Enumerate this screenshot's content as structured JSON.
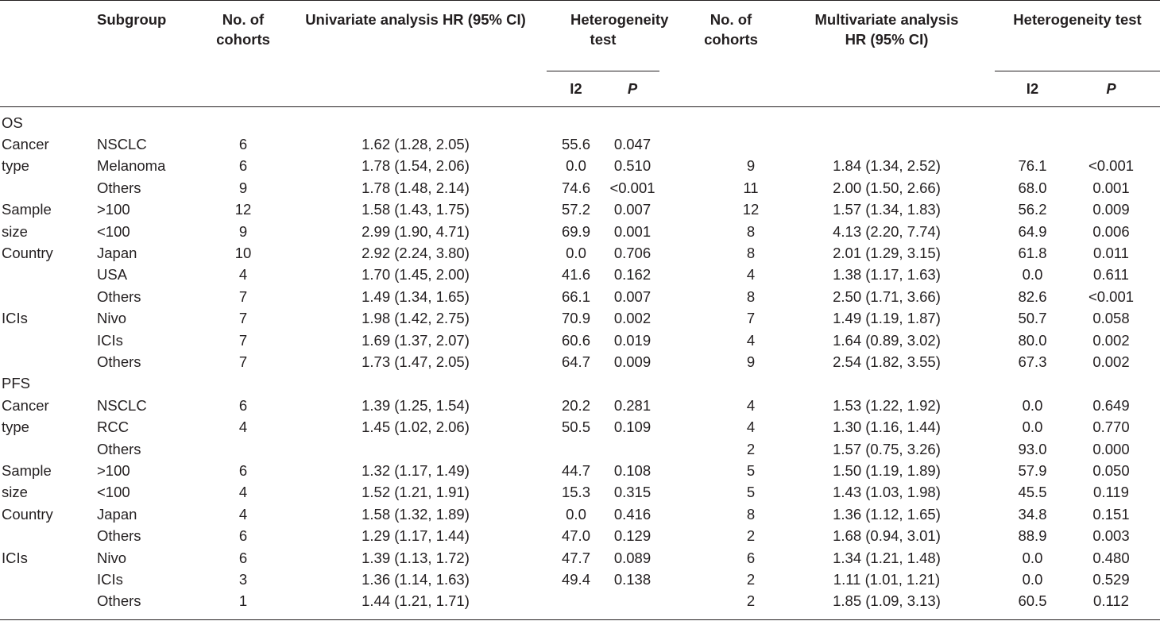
{
  "header": {
    "subgroup": "Subgroup",
    "uni_cohorts": "No. of cohorts",
    "uni_hr": "Univariate analysis HR (95% CI)",
    "uni_het": "Heterogeneity test",
    "multi_cohorts": "No. of cohorts",
    "multi_hr": "Multivariate analysis HR (95% CI)",
    "multi_het": "Heterogeneity test",
    "i2": "I2",
    "p": "P"
  },
  "sections": [
    {
      "name": "OS",
      "rows": [
        {
          "label": "Cancer",
          "subgroup": "NSCLC",
          "uc": "6",
          "uhr": "1.62 (1.28, 2.05)",
          "ui2": "55.6",
          "up": "0.047",
          "mc": "",
          "mhr": "",
          "mi2": "",
          "mp": ""
        },
        {
          "label": "type",
          "subgroup": "Melanoma",
          "uc": "6",
          "uhr": "1.78 (1.54, 2.06)",
          "ui2": "0.0",
          "up": "0.510",
          "mc": "9",
          "mhr": "1.84 (1.34, 2.52)",
          "mi2": "76.1",
          "mp": "<0.001"
        },
        {
          "label": "",
          "subgroup": "Others",
          "uc": "9",
          "uhr": "1.78 (1.48, 2.14)",
          "ui2": "74.6",
          "up": "<0.001",
          "mc": "11",
          "mhr": "2.00 (1.50, 2.66)",
          "mi2": "68.0",
          "mp": "0.001"
        },
        {
          "label": "Sample",
          "subgroup": ">100",
          "uc": "12",
          "uhr": "1.58 (1.43, 1.75)",
          "ui2": "57.2",
          "up": "0.007",
          "mc": "12",
          "mhr": "1.57 (1.34, 1.83)",
          "mi2": "56.2",
          "mp": "0.009"
        },
        {
          "label": "size",
          "subgroup": "<100",
          "uc": "9",
          "uhr": "2.99 (1.90, 4.71)",
          "ui2": "69.9",
          "up": "0.001",
          "mc": "8",
          "mhr": "4.13 (2.20, 7.74)",
          "mi2": "64.9",
          "mp": "0.006"
        },
        {
          "label": "Country",
          "subgroup": "Japan",
          "uc": "10",
          "uhr": "2.92 (2.24, 3.80)",
          "ui2": "0.0",
          "up": "0.706",
          "mc": "8",
          "mhr": "2.01 (1.29, 3.15)",
          "mi2": "61.8",
          "mp": "0.011"
        },
        {
          "label": "",
          "subgroup": "USA",
          "uc": "4",
          "uhr": "1.70 (1.45, 2.00)",
          "ui2": "41.6",
          "up": "0.162",
          "mc": "4",
          "mhr": "1.38 (1.17, 1.63)",
          "mi2": "0.0",
          "mp": "0.611"
        },
        {
          "label": "",
          "subgroup": "Others",
          "uc": "7",
          "uhr": "1.49 (1.34, 1.65)",
          "ui2": "66.1",
          "up": "0.007",
          "mc": "8",
          "mhr": "2.50 (1.71, 3.66)",
          "mi2": "82.6",
          "mp": "<0.001"
        },
        {
          "label": "ICIs",
          "subgroup": "Nivo",
          "uc": "7",
          "uhr": "1.98 (1.42, 2.75)",
          "ui2": "70.9",
          "up": "0.002",
          "mc": "7",
          "mhr": "1.49 (1.19, 1.87)",
          "mi2": "50.7",
          "mp": "0.058"
        },
        {
          "label": "",
          "subgroup": "ICIs",
          "uc": "7",
          "uhr": "1.69 (1.37, 2.07)",
          "ui2": "60.6",
          "up": "0.019",
          "mc": "4",
          "mhr": "1.64 (0.89, 3.02)",
          "mi2": "80.0",
          "mp": "0.002"
        },
        {
          "label": "",
          "subgroup": "Others",
          "uc": "7",
          "uhr": "1.73 (1.47, 2.05)",
          "ui2": "64.7",
          "up": "0.009",
          "mc": "9",
          "mhr": "2.54 (1.82, 3.55)",
          "mi2": "67.3",
          "mp": "0.002"
        }
      ]
    },
    {
      "name": "PFS",
      "rows": [
        {
          "label": "Cancer",
          "subgroup": "NSCLC",
          "uc": "6",
          "uhr": "1.39 (1.25, 1.54)",
          "ui2": "20.2",
          "up": "0.281",
          "mc": "4",
          "mhr": "1.53 (1.22, 1.92)",
          "mi2": "0.0",
          "mp": "0.649"
        },
        {
          "label": "type",
          "subgroup": "RCC",
          "uc": "4",
          "uhr": "1.45 (1.02, 2.06)",
          "ui2": "50.5",
          "up": "0.109",
          "mc": "4",
          "mhr": "1.30 (1.16, 1.44)",
          "mi2": "0.0",
          "mp": "0.770"
        },
        {
          "label": "",
          "subgroup": "Others",
          "uc": "",
          "uhr": "",
          "ui2": "",
          "up": "",
          "mc": "2",
          "mhr": "1.57 (0.75, 3.26)",
          "mi2": "93.0",
          "mp": "0.000"
        },
        {
          "label": "Sample",
          "subgroup": ">100",
          "uc": "6",
          "uhr": "1.32 (1.17, 1.49)",
          "ui2": "44.7",
          "up": "0.108",
          "mc": "5",
          "mhr": "1.50 (1.19, 1.89)",
          "mi2": "57.9",
          "mp": "0.050"
        },
        {
          "label": "size",
          "subgroup": "<100",
          "uc": "4",
          "uhr": "1.52 (1.21, 1.91)",
          "ui2": "15.3",
          "up": "0.315",
          "mc": "5",
          "mhr": "1.43 (1.03, 1.98)",
          "mi2": "45.5",
          "mp": "0.119"
        },
        {
          "label": "Country",
          "subgroup": "Japan",
          "uc": "4",
          "uhr": "1.58 (1.32, 1.89)",
          "ui2": "0.0",
          "up": "0.416",
          "mc": "8",
          "mhr": "1.36 (1.12, 1.65)",
          "mi2": "34.8",
          "mp": "0.151"
        },
        {
          "label": "",
          "subgroup": "Others",
          "uc": "6",
          "uhr": "1.29 (1.17, 1.44)",
          "ui2": "47.0",
          "up": "0.129",
          "mc": "2",
          "mhr": "1.68 (0.94, 3.01)",
          "mi2": "88.9",
          "mp": "0.003"
        },
        {
          "label": "ICIs",
          "subgroup": "Nivo",
          "uc": "6",
          "uhr": "1.39 (1.13, 1.72)",
          "ui2": "47.7",
          "up": "0.089",
          "mc": "6",
          "mhr": "1.34 (1.21, 1.48)",
          "mi2": "0.0",
          "mp": "0.480"
        },
        {
          "label": "",
          "subgroup": "ICIs",
          "uc": "3",
          "uhr": "1.36 (1.14, 1.63)",
          "ui2": "49.4",
          "up": "0.138",
          "mc": "2",
          "mhr": "1.11 (1.01, 1.21)",
          "mi2": "0.0",
          "mp": "0.529"
        },
        {
          "label": "",
          "subgroup": "Others",
          "uc": "1",
          "uhr": "1.44 (1.21, 1.71)",
          "ui2": "",
          "up": "",
          "mc": "2",
          "mhr": "1.85 (1.09, 3.13)",
          "mi2": "60.5",
          "mp": "0.112"
        }
      ]
    }
  ]
}
